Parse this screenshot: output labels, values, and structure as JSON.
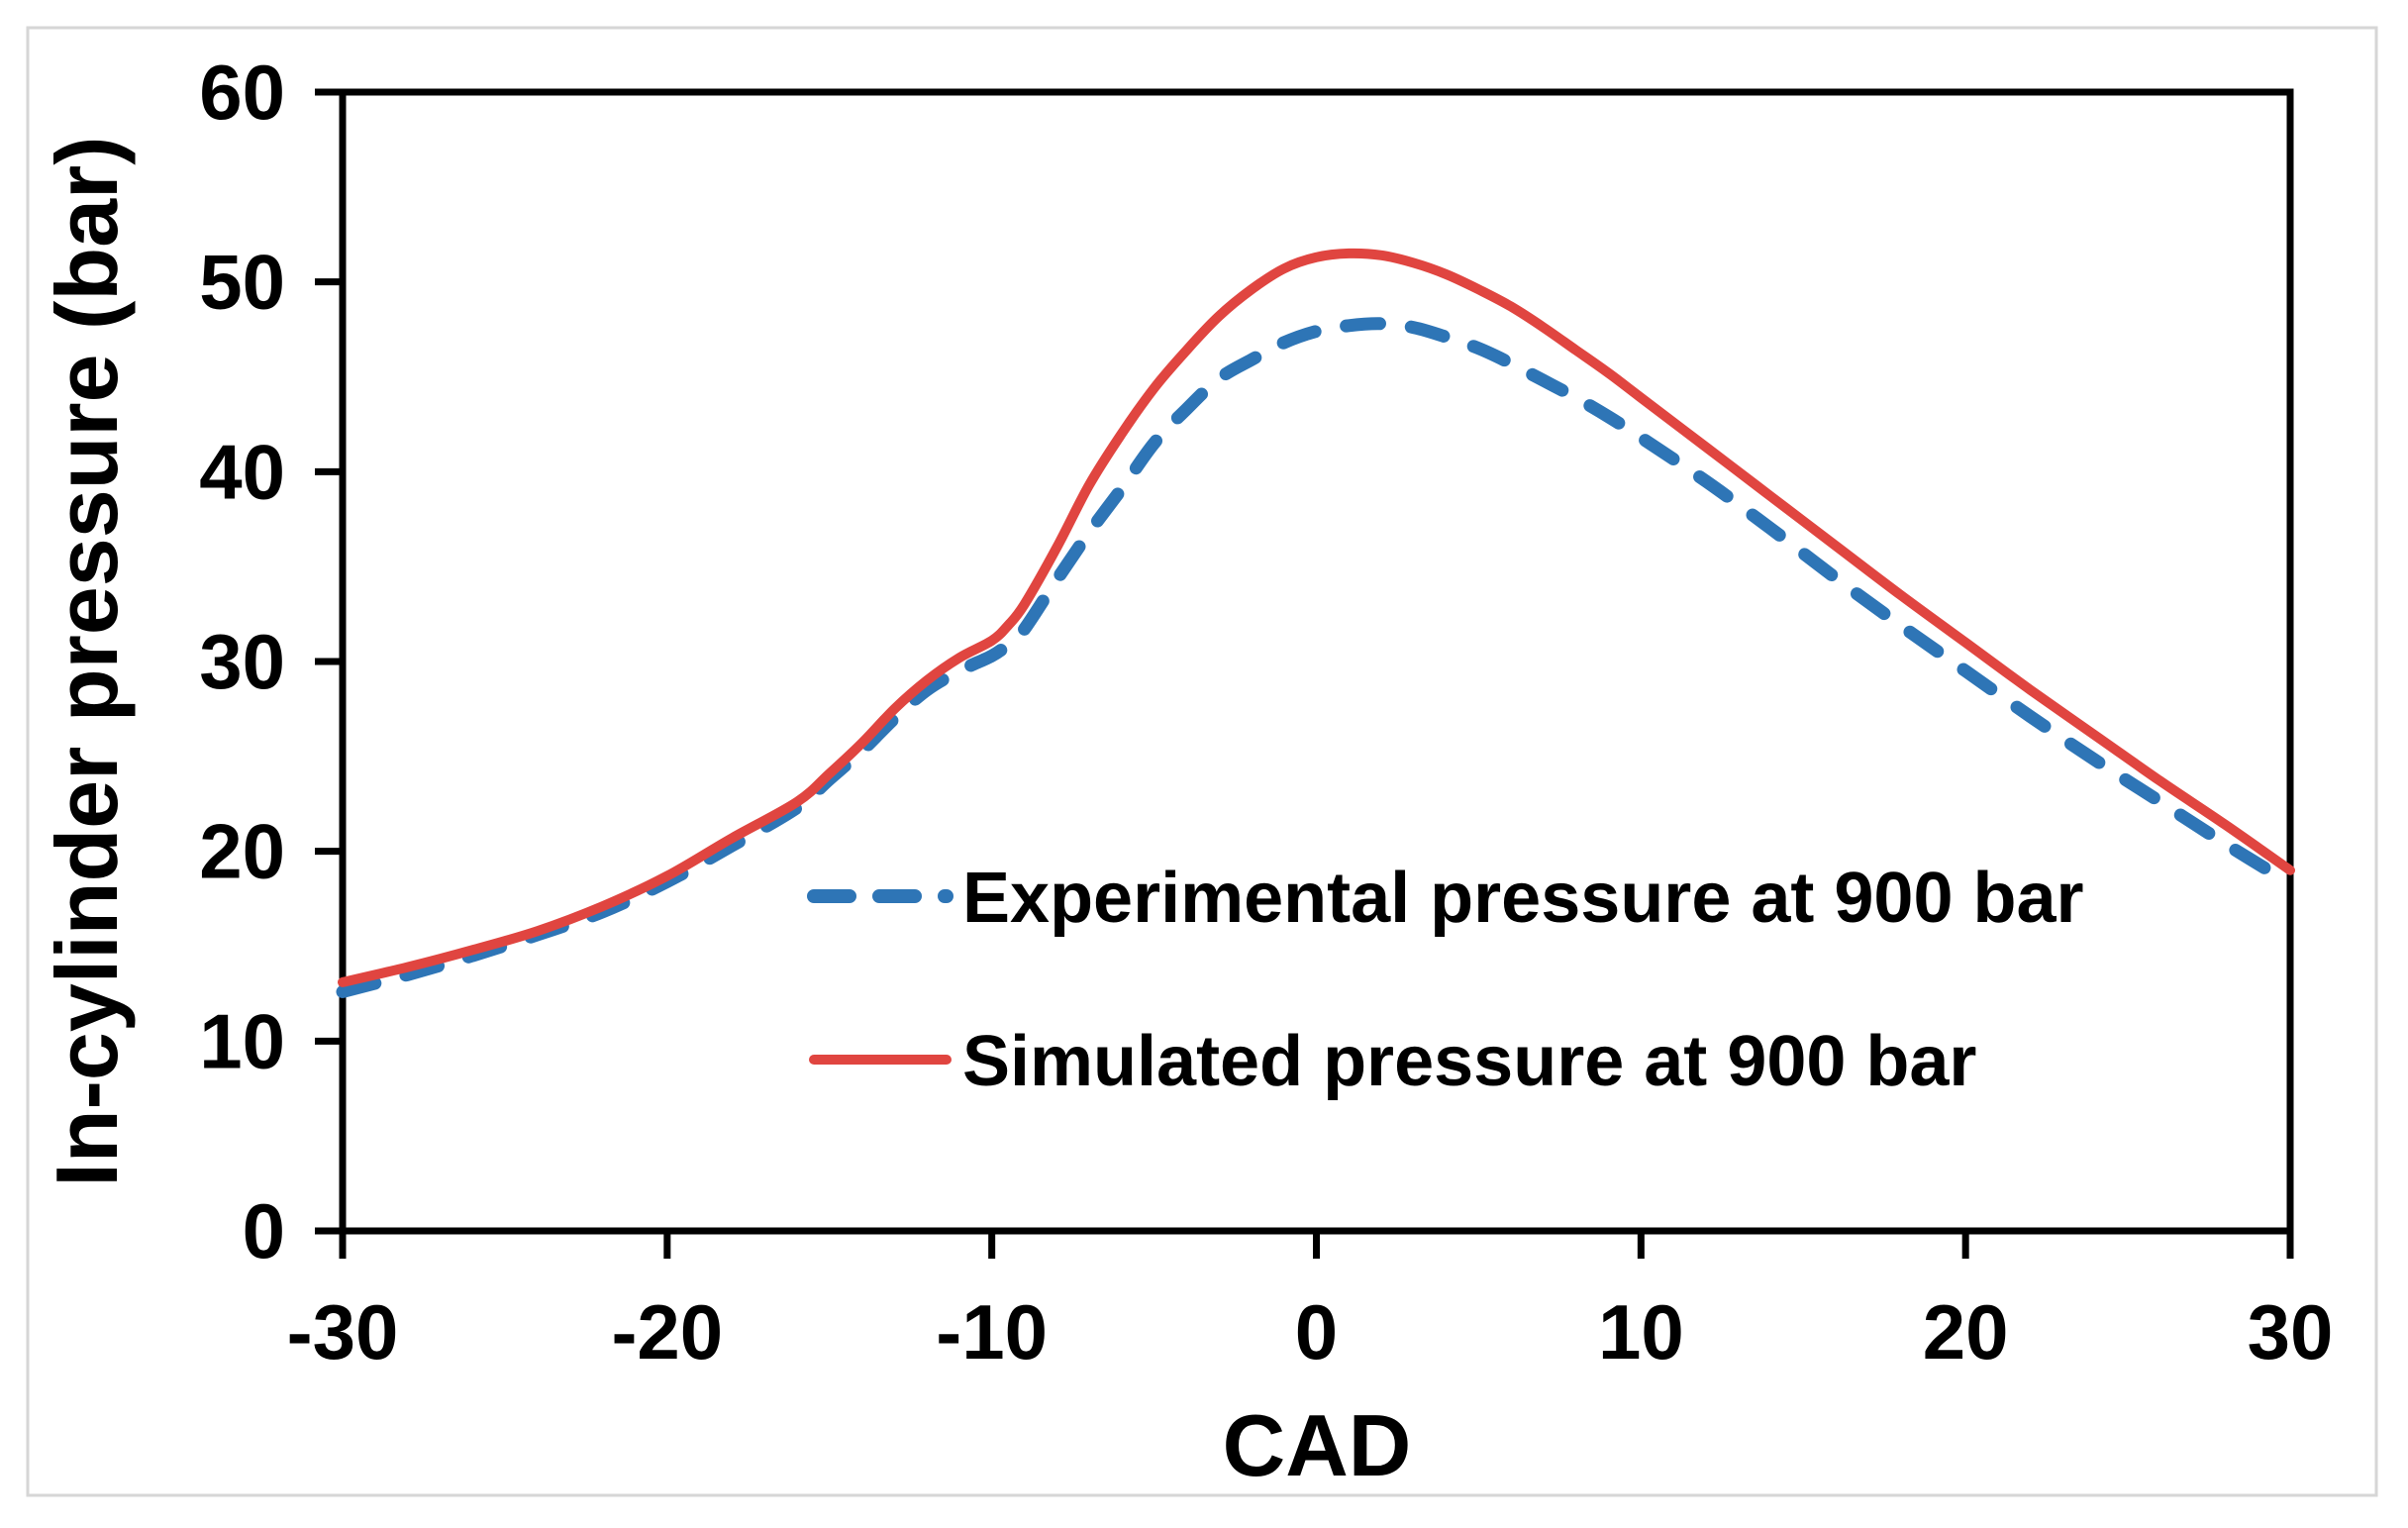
{
  "chart_data": {
    "type": "line",
    "title": "",
    "xlabel": "CAD",
    "ylabel": "In-cylinder pressure (bar)",
    "xlim": [
      -30,
      30
    ],
    "ylim": [
      0,
      60
    ],
    "x_ticks": [
      -30,
      -20,
      -10,
      0,
      10,
      20,
      30
    ],
    "y_ticks": [
      0,
      10,
      20,
      30,
      40,
      50,
      60
    ],
    "grid": false,
    "legend_position": "inside-bottom-center",
    "frame_color": "#000000",
    "figure_border_color": "#d6d6d6",
    "series": [
      {
        "name": "Experimental pressure at 900 bar",
        "color": "#2e75b6",
        "style": "dashed",
        "points": [
          [
            -30,
            12.6
          ],
          [
            -28,
            13.5
          ],
          [
            -26,
            14.5
          ],
          [
            -24,
            15.6
          ],
          [
            -22,
            16.8
          ],
          [
            -20,
            18.4
          ],
          [
            -18,
            20.3
          ],
          [
            -16,
            22.3
          ],
          [
            -15,
            23.8
          ],
          [
            -14,
            25.3
          ],
          [
            -13,
            27.0
          ],
          [
            -12,
            28.5
          ],
          [
            -11,
            29.5
          ],
          [
            -10,
            30.3
          ],
          [
            -9.5,
            30.9
          ],
          [
            -9,
            31.7
          ],
          [
            -8,
            34.3
          ],
          [
            -7,
            36.8
          ],
          [
            -6,
            39.1
          ],
          [
            -5,
            41.5
          ],
          [
            -4,
            43.3
          ],
          [
            -3,
            44.9
          ],
          [
            -2,
            45.9
          ],
          [
            -1,
            46.8
          ],
          [
            0,
            47.4
          ],
          [
            1,
            47.7
          ],
          [
            2,
            47.8
          ],
          [
            3,
            47.6
          ],
          [
            4,
            47.1
          ],
          [
            5,
            46.5
          ],
          [
            6,
            45.7
          ],
          [
            7,
            44.8
          ],
          [
            8,
            43.9
          ],
          [
            9,
            42.9
          ],
          [
            10,
            41.8
          ],
          [
            12,
            39.5
          ],
          [
            14,
            37.0
          ],
          [
            16,
            34.4
          ],
          [
            18,
            31.9
          ],
          [
            20,
            29.5
          ],
          [
            22,
            27.1
          ],
          [
            24,
            24.8
          ],
          [
            26,
            22.6
          ],
          [
            28,
            20.4
          ],
          [
            30,
            18.3
          ]
        ]
      },
      {
        "name": "Simulated pressure at 900 bar",
        "color": "#e04540",
        "style": "solid",
        "points": [
          [
            -30,
            13.1
          ],
          [
            -28,
            13.9
          ],
          [
            -26,
            14.8
          ],
          [
            -24,
            15.8
          ],
          [
            -22,
            17.1
          ],
          [
            -20,
            18.7
          ],
          [
            -18,
            20.7
          ],
          [
            -16,
            22.6
          ],
          [
            -15,
            24.1
          ],
          [
            -14,
            25.7
          ],
          [
            -13,
            27.5
          ],
          [
            -12,
            29.0
          ],
          [
            -11,
            30.2
          ],
          [
            -10,
            31.1
          ],
          [
            -9.5,
            31.9
          ],
          [
            -9,
            33.0
          ],
          [
            -8,
            36.0
          ],
          [
            -7,
            39.3
          ],
          [
            -6,
            42.0
          ],
          [
            -5,
            44.4
          ],
          [
            -4,
            46.4
          ],
          [
            -3,
            48.2
          ],
          [
            -2,
            49.6
          ],
          [
            -1,
            50.7
          ],
          [
            0,
            51.3
          ],
          [
            1,
            51.5
          ],
          [
            2,
            51.4
          ],
          [
            3,
            51.0
          ],
          [
            4,
            50.4
          ],
          [
            5,
            49.6
          ],
          [
            6,
            48.7
          ],
          [
            7,
            47.6
          ],
          [
            8,
            46.4
          ],
          [
            9,
            45.2
          ],
          [
            10,
            43.9
          ],
          [
            12,
            41.3
          ],
          [
            14,
            38.7
          ],
          [
            16,
            36.1
          ],
          [
            18,
            33.5
          ],
          [
            20,
            31.0
          ],
          [
            22,
            28.5
          ],
          [
            24,
            26.1
          ],
          [
            26,
            23.7
          ],
          [
            28,
            21.4
          ],
          [
            30,
            19.0
          ]
        ]
      }
    ]
  }
}
